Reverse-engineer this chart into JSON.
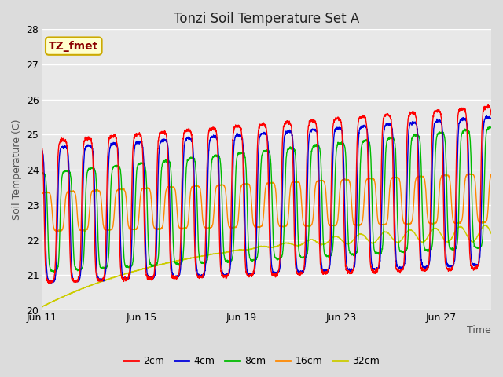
{
  "title": "Tonzi Soil Temperature Set A",
  "xlabel": "Time",
  "ylabel": "Soil Temperature (C)",
  "ylim": [
    20.0,
    28.0
  ],
  "yticks": [
    20.0,
    21.0,
    22.0,
    23.0,
    24.0,
    25.0,
    26.0,
    27.0,
    28.0
  ],
  "xtick_labels": [
    "Jun 11",
    "Jun 15",
    "Jun 19",
    "Jun 23",
    "Jun 27"
  ],
  "xtick_positions": [
    0,
    4,
    8,
    12,
    16
  ],
  "n_days": 18,
  "fig_bg": "#dcdcdc",
  "plot_bg": "#e8e8e8",
  "grid_color": "#ffffff",
  "legend_label": "TZ_fmet",
  "legend_bg": "#ffffcc",
  "legend_border": "#ccaa00",
  "series_colors": [
    "#ff0000",
    "#0000dd",
    "#00bb00",
    "#ff8800",
    "#cccc00"
  ],
  "series_labels": [
    "2cm",
    "4cm",
    "8cm",
    "16cm",
    "32cm"
  ],
  "title_fontsize": 12,
  "label_fontsize": 9,
  "tick_fontsize": 9,
  "legend_fontsize": 9,
  "line_width": 1.0
}
